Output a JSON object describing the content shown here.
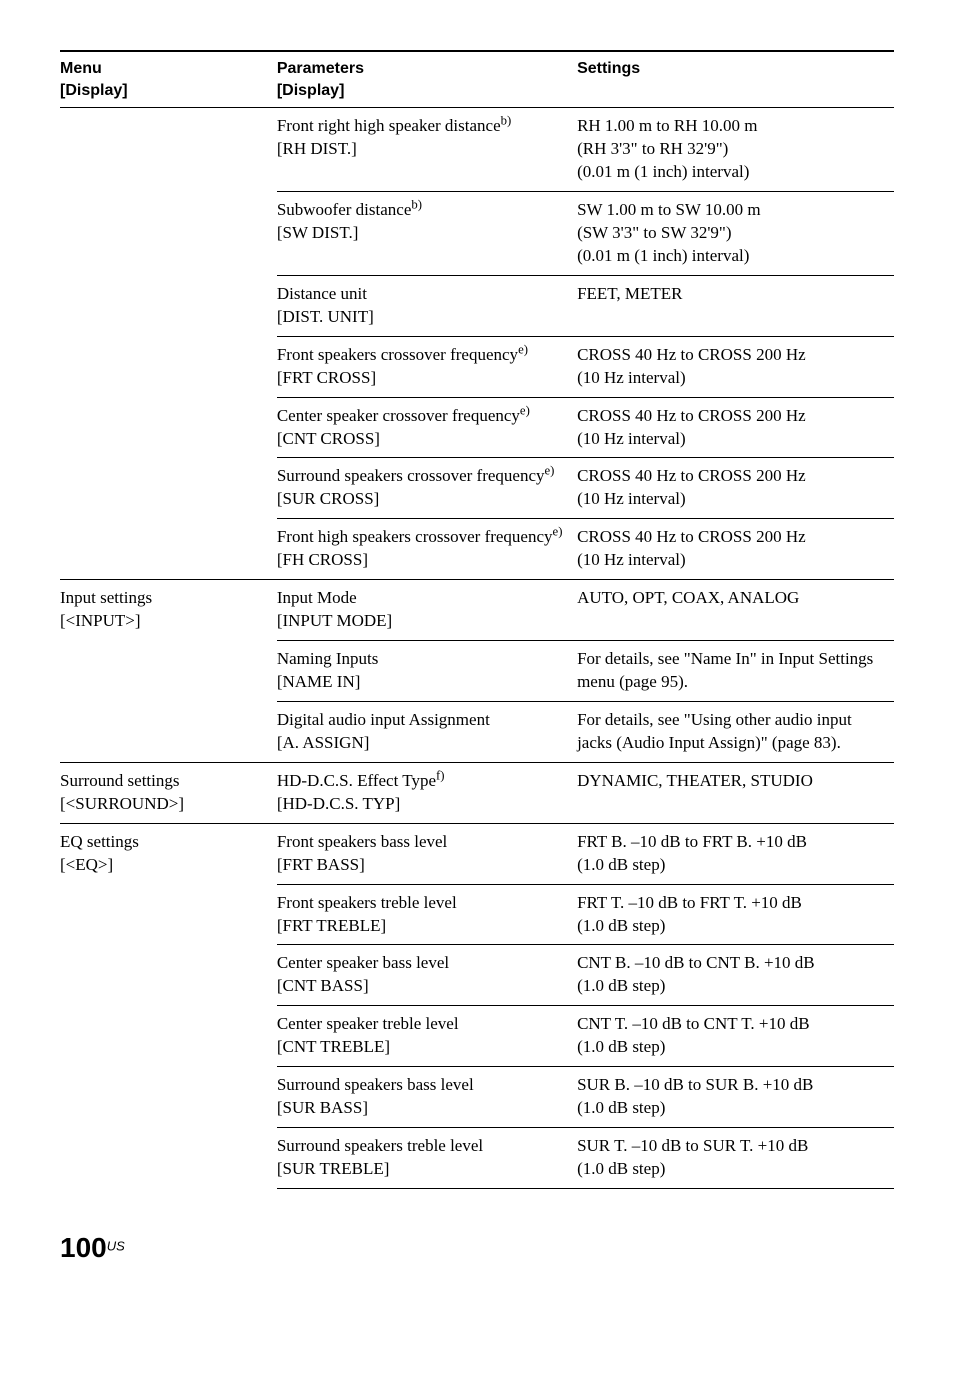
{
  "headers": {
    "menu_l1": "Menu",
    "menu_l2": "[Display]",
    "param_l1": "Parameters",
    "param_l2": "[Display]",
    "set_l1": "Settings"
  },
  "rows": [
    {
      "menu": "",
      "param_html": "Front right high speaker distance<span class='sup'>b)</span><br>[RH DIST.]",
      "set": "RH 1.00 m to RH 10.00 m\n(RH 3'3\" to RH 32'9\")\n(0.01 m (1 inch) interval)",
      "section_start": false
    },
    {
      "menu": "",
      "param_html": "Subwoofer distance<span class='sup'>b)</span><br>[SW DIST.]",
      "set": "SW 1.00 m to SW 10.00 m\n(SW 3'3\" to SW 32'9\")\n(0.01 m (1 inch) interval)",
      "section_start": false
    },
    {
      "menu": "",
      "param_html": "Distance unit<br>[DIST. UNIT]",
      "set": "FEET, METER",
      "section_start": false
    },
    {
      "menu": "",
      "param_html": "Front speakers crossover frequency<span class='sup'>e)</span><br>[FRT CROSS]",
      "set": "CROSS 40 Hz to CROSS 200 Hz\n(10 Hz interval)",
      "section_start": false
    },
    {
      "menu": "",
      "param_html": "Center speaker crossover frequency<span class='sup'>e)</span><br>[CNT CROSS]",
      "set": "CROSS 40 Hz to CROSS 200 Hz\n(10 Hz interval)",
      "section_start": false
    },
    {
      "menu": "",
      "param_html": "Surround speakers crossover frequency<span class='sup'>e)</span><br>[SUR CROSS]",
      "set": "CROSS 40 Hz to CROSS 200 Hz\n(10 Hz interval)",
      "section_start": false
    },
    {
      "menu": "",
      "param_html": "Front high speakers crossover frequency<span class='sup'>e)</span><br>[FH CROSS]",
      "set": "CROSS 40 Hz to CROSS 200 Hz\n(10 Hz interval)",
      "section_start": false
    },
    {
      "menu": "Input settings\n[<INPUT>]",
      "param_html": "Input Mode<br>[INPUT MODE]",
      "set": "AUTO, OPT, COAX, ANALOG",
      "section_start": true
    },
    {
      "menu": "",
      "param_html": "Naming Inputs<br>[NAME IN]",
      "set": "For details, see \"Name In\" in Input Settings menu (page 95).",
      "section_start": false
    },
    {
      "menu": "",
      "param_html": "Digital audio input Assignment<br>[A. ASSIGN]",
      "set": "For details, see \"Using other audio input jacks (Audio Input Assign)\" (page 83).",
      "section_start": false
    },
    {
      "menu": "Surround settings\n[<SURROUND>]",
      "param_html": "HD-D.C.S. Effect Type<span class='sup'>f)</span><br>[HD-D.C.S. TYP]",
      "set": "DYNAMIC, THEATER, STUDIO",
      "section_start": true
    },
    {
      "menu": "EQ settings\n[<EQ>]",
      "param_html": "Front speakers bass level<br>[FRT BASS]",
      "set": "FRT B. –10 dB to FRT B. +10 dB\n(1.0 dB step)",
      "section_start": true
    },
    {
      "menu": "",
      "param_html": "Front speakers treble level<br>[FRT TREBLE]",
      "set": "FRT T. –10 dB to FRT T. +10 dB\n(1.0 dB step)",
      "section_start": false
    },
    {
      "menu": "",
      "param_html": "Center speaker bass level<br>[CNT BASS]",
      "set": "CNT B. –10 dB to CNT B. +10 dB\n(1.0 dB step)",
      "section_start": false
    },
    {
      "menu": "",
      "param_html": "Center speaker treble level<br>[CNT TREBLE]",
      "set": "CNT T. –10 dB to CNT T. +10 dB\n(1.0 dB step)",
      "section_start": false
    },
    {
      "menu": "",
      "param_html": "Surround speakers bass level<br>[SUR BASS]",
      "set": "SUR B. –10 dB to SUR B. +10 dB\n(1.0 dB step)",
      "section_start": false
    },
    {
      "menu": "",
      "param_html": "Surround speakers treble level<br>[SUR TREBLE]",
      "set": "SUR T. –10 dB to SUR T. +10 dB\n(1.0 dB step)",
      "section_start": false
    }
  ],
  "page": {
    "num": "100",
    "region": "US"
  }
}
